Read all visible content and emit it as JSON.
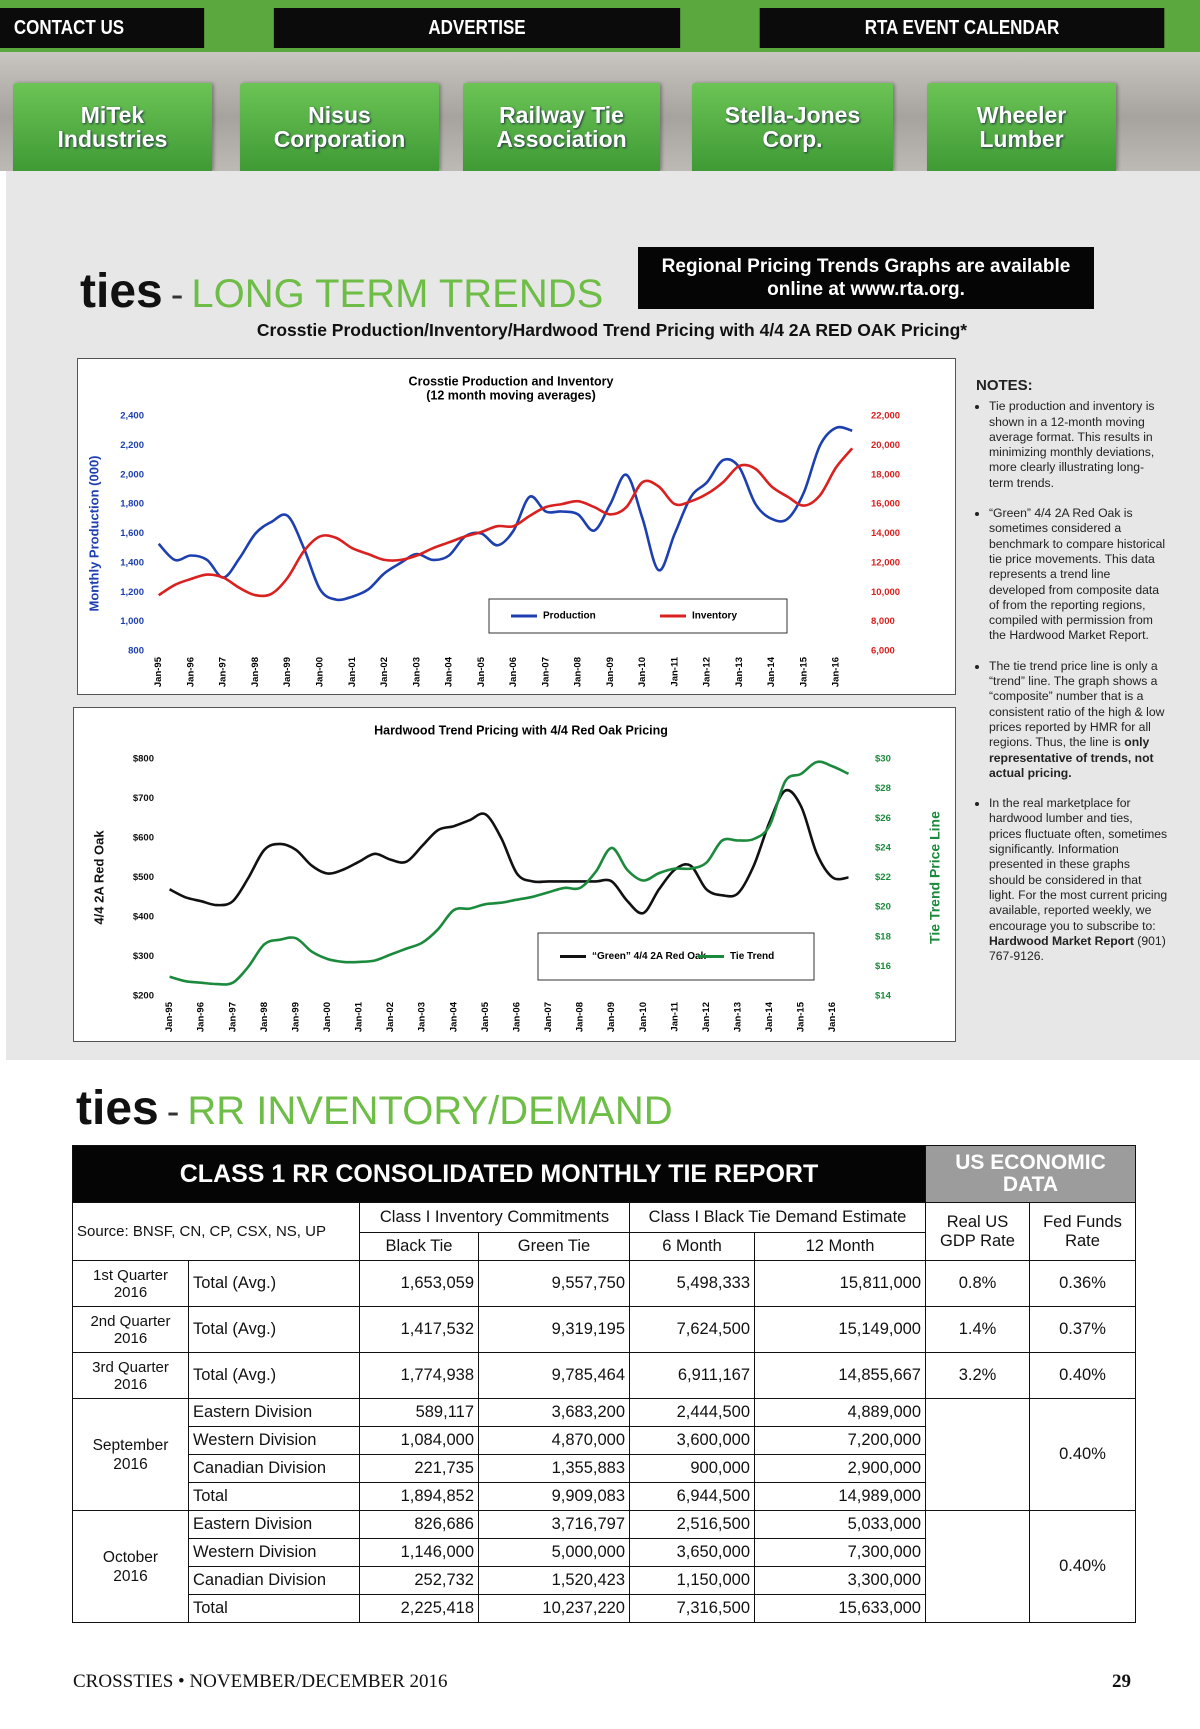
{
  "nav": [
    "CONTACT US",
    "ADVERTISE",
    "RTA EVENT CALENDAR"
  ],
  "buttons": [
    "MiTek\nIndustries",
    "Nisus\nCorporation",
    "Railway Tie\nAssociation",
    "Stella-Jones\nCorp.",
    "Wheeler\nLumber"
  ],
  "section1": {
    "word": "ties",
    "separator": "-",
    "title": "LONG TERM TRENDS"
  },
  "banner": "Regional Pricing Trends Graphs are available\nonline at www.rta.org.",
  "subtitle": "Crosstie Production/Inventory/Hardwood Trend Pricing with 4/4 2A RED OAK Pricing*",
  "chart_data": [
    {
      "type": "line",
      "title": "Crosstie Production and Inventory",
      "subtitle": "(12 month moving averages)",
      "ylabel": "Monthly Production (000)",
      "x": [
        0,
        6,
        12,
        18,
        24,
        30,
        36,
        42,
        48,
        54,
        60,
        66,
        72,
        78,
        84,
        90,
        96,
        102,
        108,
        114,
        120,
        126,
        132,
        138,
        144,
        150,
        156,
        162,
        168,
        174,
        180,
        186,
        192,
        198,
        204,
        210,
        216,
        222,
        228,
        234,
        240,
        246,
        252,
        258
      ],
      "xlim": [
        -1,
        262
      ],
      "xticks": [
        {
          "value": 0,
          "label": "Jan-95"
        },
        {
          "value": 12,
          "label": "Jan-96"
        },
        {
          "value": 24,
          "label": "Jan-97"
        },
        {
          "value": 36,
          "label": "Jan-98"
        },
        {
          "value": 48,
          "label": "Jan-99"
        },
        {
          "value": 60,
          "label": "Jan-00"
        },
        {
          "value": 72,
          "label": "Jan-01"
        },
        {
          "value": 84,
          "label": "Jan-02"
        },
        {
          "value": 96,
          "label": "Jan-03"
        },
        {
          "value": 108,
          "label": "Jan-04"
        },
        {
          "value": 120,
          "label": "Jan-05"
        },
        {
          "value": 132,
          "label": "Jan-06"
        },
        {
          "value": 144,
          "label": "Jan-07"
        },
        {
          "value": 156,
          "label": "Jan-08"
        },
        {
          "value": 168,
          "label": "Jan-09"
        },
        {
          "value": 180,
          "label": "Jan-10"
        },
        {
          "value": 192,
          "label": "Jan-11"
        },
        {
          "value": 204,
          "label": "Jan-12"
        },
        {
          "value": 216,
          "label": "Jan-13"
        },
        {
          "value": 228,
          "label": "Jan-14"
        },
        {
          "value": 240,
          "label": "Jan-15"
        },
        {
          "value": 252,
          "label": "Jan-16"
        }
      ],
      "ylim": [
        800,
        2400
      ],
      "yticks": [
        800,
        {
          "value": 1000,
          "label": "1,000"
        },
        {
          "value": 1200,
          "label": "1,200"
        },
        {
          "value": 1400,
          "label": "1,400"
        },
        {
          "value": 1600,
          "label": "1,600"
        },
        {
          "value": 1800,
          "label": "1,800"
        },
        {
          "value": 2000,
          "label": "2,000"
        },
        {
          "value": 2200,
          "label": "2,200"
        },
        {
          "value": 2400,
          "label": "2,400"
        }
      ],
      "y2lim": [
        6000,
        22000
      ],
      "y2ticks": [
        {
          "value": 6000,
          "label": "6,000"
        },
        {
          "value": 8000,
          "label": "8,000"
        },
        {
          "value": 10000,
          "label": "10,000"
        },
        {
          "value": 12000,
          "label": "12,000"
        },
        {
          "value": 14000,
          "label": "14,000"
        },
        {
          "value": 16000,
          "label": "16,000"
        },
        {
          "value": 18000,
          "label": "18,000"
        },
        {
          "value": 20000,
          "label": "20,000"
        },
        {
          "value": 22000,
          "label": "22,000"
        }
      ],
      "series": [
        {
          "name": "Production",
          "color": "#1d3fb0",
          "values": [
            1530,
            1420,
            1450,
            1420,
            1300,
            1430,
            1600,
            1680,
            1720,
            1500,
            1220,
            1150,
            1170,
            1220,
            1330,
            1400,
            1460,
            1420,
            1450,
            1580,
            1600,
            1520,
            1620,
            1850,
            1750,
            1750,
            1730,
            1620,
            1800,
            2000,
            1700,
            1350,
            1600,
            1850,
            1950,
            2100,
            2050,
            1800,
            1700,
            1700,
            1880,
            2200,
            2320,
            2300
          ]
        },
        {
          "name": "Inventory",
          "color": "#d9211f",
          "axis": "y2",
          "values": [
            9800,
            10500,
            10900,
            11200,
            11000,
            10300,
            9800,
            9900,
            11000,
            12800,
            13800,
            13700,
            13000,
            12600,
            12200,
            12200,
            12500,
            13000,
            13400,
            13800,
            14100,
            14500,
            14500,
            15200,
            15800,
            16000,
            16200,
            15800,
            15300,
            15800,
            17500,
            17200,
            16000,
            16200,
            16700,
            17500,
            18600,
            18400,
            17200,
            16500,
            15900,
            16600,
            18500,
            19800
          ]
        }
      ]
    },
    {
      "type": "line",
      "title": "Hardwood Trend Pricing with 4/4 Red Oak Pricing",
      "ylabel": "4/4  2A Red Oak",
      "y2label": "Tie Trend Price Line",
      "x": [
        0,
        6,
        12,
        18,
        24,
        30,
        36,
        42,
        48,
        54,
        60,
        66,
        72,
        78,
        84,
        90,
        96,
        102,
        108,
        114,
        120,
        126,
        132,
        138,
        144,
        150,
        156,
        162,
        168,
        174,
        180,
        186,
        192,
        198,
        204,
        210,
        216,
        222,
        228,
        234,
        240,
        246,
        252,
        258
      ],
      "xlim": [
        -1,
        262
      ],
      "xticks": [
        {
          "value": 0,
          "label": "Jan-95"
        },
        {
          "value": 12,
          "label": "Jan-96"
        },
        {
          "value": 24,
          "label": "Jan-97"
        },
        {
          "value": 36,
          "label": "Jan-98"
        },
        {
          "value": 48,
          "label": "Jan-99"
        },
        {
          "value": 60,
          "label": "Jan-00"
        },
        {
          "value": 72,
          "label": "Jan-01"
        },
        {
          "value": 84,
          "label": "Jan-02"
        },
        {
          "value": 96,
          "label": "Jan-03"
        },
        {
          "value": 108,
          "label": "Jan-04"
        },
        {
          "value": 120,
          "label": "Jan-05"
        },
        {
          "value": 132,
          "label": "Jan-06"
        },
        {
          "value": 144,
          "label": "Jan-07"
        },
        {
          "value": 156,
          "label": "Jan-08"
        },
        {
          "value": 168,
          "label": "Jan-09"
        },
        {
          "value": 180,
          "label": "Jan-10"
        },
        {
          "value": 192,
          "label": "Jan-11"
        },
        {
          "value": 204,
          "label": "Jan-12"
        },
        {
          "value": 216,
          "label": "Jan-13"
        },
        {
          "value": 228,
          "label": "Jan-14"
        },
        {
          "value": 240,
          "label": "Jan-15"
        },
        {
          "value": 252,
          "label": "Jan-16"
        }
      ],
      "ylim": [
        200,
        800
      ],
      "yticks": [
        {
          "value": 200,
          "label": "$200"
        },
        {
          "value": 300,
          "label": "$300"
        },
        {
          "value": 400,
          "label": "$400"
        },
        {
          "value": 500,
          "label": "$500"
        },
        {
          "value": 600,
          "label": "$600"
        },
        {
          "value": 700,
          "label": "$700"
        },
        {
          "value": 800,
          "label": "$800"
        }
      ],
      "y2lim": [
        14,
        30
      ],
      "y2ticks": [
        {
          "value": 14,
          "label": "$14"
        },
        {
          "value": 16,
          "label": "$16"
        },
        {
          "value": 18,
          "label": "$18"
        },
        {
          "value": 20,
          "label": "$20"
        },
        {
          "value": 22,
          "label": "$22"
        },
        {
          "value": 24,
          "label": "$24"
        },
        {
          "value": 26,
          "label": "$26"
        },
        {
          "value": 28,
          "label": "$28"
        },
        {
          "value": 30,
          "label": "$30"
        }
      ],
      "series": [
        {
          "name": "“Green” 4/4 2A Red Oak",
          "color": "#111111",
          "values": [
            470,
            450,
            440,
            430,
            440,
            500,
            570,
            585,
            570,
            530,
            510,
            520,
            540,
            560,
            545,
            540,
            580,
            620,
            630,
            645,
            660,
            600,
            510,
            490,
            490,
            490,
            490,
            490,
            490,
            440,
            410,
            470,
            520,
            530,
            470,
            455,
            460,
            530,
            640,
            720,
            680,
            560,
            500,
            500
          ]
        },
        {
          "name": "Tie Trend",
          "color": "#1b8a3c",
          "axis": "y2",
          "values": [
            15.3,
            15.0,
            14.9,
            14.8,
            14.9,
            16.0,
            17.5,
            17.8,
            17.9,
            17.0,
            16.5,
            16.3,
            16.3,
            16.4,
            16.8,
            17.2,
            17.6,
            18.5,
            19.8,
            19.9,
            20.2,
            20.3,
            20.5,
            20.7,
            21.0,
            21.3,
            21.3,
            22.4,
            24.0,
            22.5,
            21.8,
            22.3,
            22.6,
            22.6,
            23.0,
            24.5,
            24.5,
            24.6,
            25.5,
            28.5,
            29.0,
            29.8,
            29.5,
            29.0
          ]
        }
      ]
    }
  ],
  "notes": {
    "heading": "NOTES:",
    "items": [
      [
        {
          "text": "Tie production and inventory is shown in a 12-month moving average format. This results in minimizing monthly deviations, more clearly illustrating long-term trends.",
          "bold": false
        }
      ],
      [
        {
          "text": "“Green” 4/4 2A Red Oak is sometimes considered a benchmark to compare historical tie price movements. This data represents a trend line developed from composite data of from the reporting regions, compiled with permission from the Hardwood Market Report.",
          "bold": false
        }
      ],
      [
        {
          "text": "The tie trend price line is only a “trend” line. The graph shows a “composite” number that is a consistent ratio of the high & low prices reported by HMR for all regions. Thus, the line is ",
          "bold": false
        },
        {
          "text": "only representative of trends, not actual pricing.",
          "bold": true
        }
      ],
      [
        {
          "text": "In the real marketplace for hardwood lumber and ties, prices fluctuate often, sometimes significantly. Information presented in these graphs should be considered in that light. For the most current pricing available, reported weekly, we encourage you to subscribe to: ",
          "bold": false
        },
        {
          "text": "Hardwood Market Report",
          "bold": true
        },
        {
          "text": " (901) 767-9126.",
          "bold": false
        }
      ]
    ]
  },
  "section2": {
    "word": "ties",
    "separator": "-",
    "title": "RR INVENTORY/DEMAND"
  },
  "table": {
    "title": "CLASS 1 RR CONSOLIDATED MONTHLY TIE REPORT",
    "side_title": "US ECONOMIC\nDATA",
    "source": "Source: BNSF, CN, CP, CSX, NS, UP",
    "group_headers": [
      "Class I Inventory Commitments",
      "Class I Black Tie Demand Estimate",
      "Real US\nGDP Rate",
      "Fed Funds\nRate"
    ],
    "columns": [
      "Black Tie",
      "Green Tie",
      "6 Month",
      "12 Month"
    ],
    "quarters": [
      {
        "period": "1st Quarter\n2016",
        "label": "Total (Avg.)",
        "values": [
          "1,653,059",
          "9,557,750",
          "5,498,333",
          "15,811,000"
        ],
        "gdp": "0.8%",
        "fed": "0.36%"
      },
      {
        "period": "2nd Quarter\n2016",
        "label": "Total (Avg.)",
        "values": [
          "1,417,532",
          "9,319,195",
          "7,624,500",
          "15,149,000"
        ],
        "gdp": "1.4%",
        "fed": "0.37%"
      },
      {
        "period": "3rd Quarter\n2016",
        "label": "Total (Avg.)",
        "values": [
          "1,774,938",
          "9,785,464",
          "6,911,167",
          "14,855,667"
        ],
        "gdp": "3.2%",
        "fed": "0.40%"
      }
    ],
    "months": [
      {
        "period": "September\n2016",
        "fed": "0.40%",
        "rows": [
          {
            "label": "Eastern Division",
            "values": [
              "589,117",
              "3,683,200",
              "2,444,500",
              "4,889,000"
            ]
          },
          {
            "label": "Western Division",
            "values": [
              "1,084,000",
              "4,870,000",
              "3,600,000",
              "7,200,000"
            ]
          },
          {
            "label": "Canadian Division",
            "values": [
              "221,735",
              "1,355,883",
              "900,000",
              "2,900,000"
            ]
          },
          {
            "label": "Total",
            "values": [
              "1,894,852",
              "9,909,083",
              "6,944,500",
              "14,989,000"
            ]
          }
        ]
      },
      {
        "period": "October\n2016",
        "fed": "0.40%",
        "rows": [
          {
            "label": "Eastern Division",
            "values": [
              "826,686",
              "3,716,797",
              "2,516,500",
              "5,033,000"
            ]
          },
          {
            "label": "Western Division",
            "values": [
              "1,146,000",
              "5,000,000",
              "3,650,000",
              "7,300,000"
            ]
          },
          {
            "label": "Canadian Division",
            "values": [
              "252,732",
              "1,520,423",
              "1,150,000",
              "3,300,000"
            ]
          },
          {
            "label": "Total",
            "values": [
              "2,225,418",
              "10,237,220",
              "7,316,500",
              "15,633,000"
            ]
          }
        ]
      }
    ]
  },
  "footer": {
    "left": "CROSSTIES • NOVEMBER/DECEMBER 2016",
    "page": "29"
  }
}
